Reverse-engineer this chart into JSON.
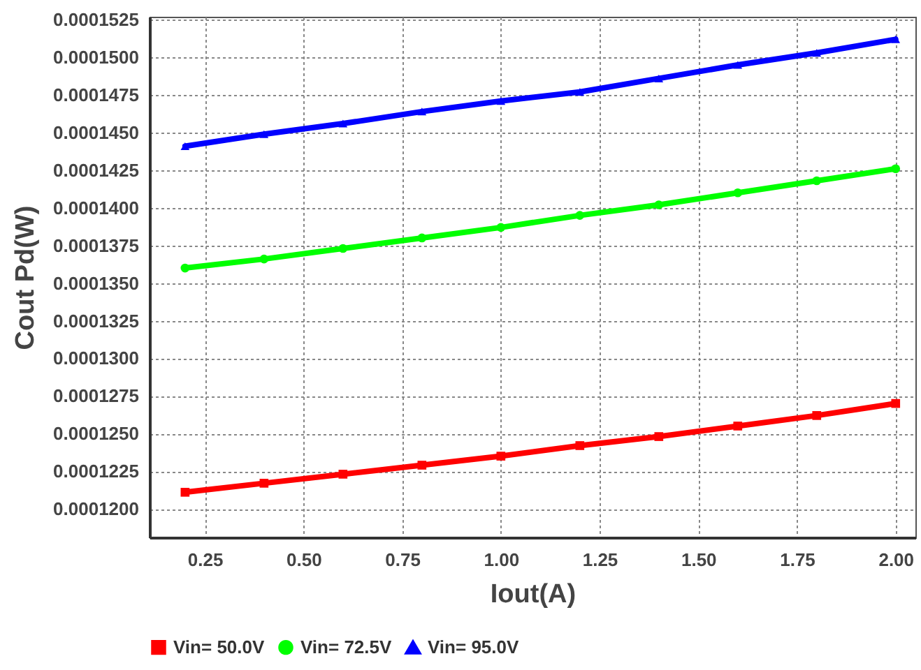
{
  "chart_data": {
    "type": "line",
    "xlabel": "Iout(A)",
    "ylabel": "Cout Pd(W)",
    "x": [
      0.2,
      0.4,
      0.6,
      0.8,
      1.0,
      1.2,
      1.4,
      1.6,
      1.8,
      2.0
    ],
    "series": [
      {
        "name": "Vin= 50.0V",
        "color": "#ff0000",
        "marker": "square",
        "values": [
          0.0001211,
          0.0001217,
          0.0001223,
          0.0001229,
          0.0001235,
          0.0001242,
          0.0001248,
          0.0001255,
          0.0001262,
          0.000127
        ]
      },
      {
        "name": "Vin= 72.5V",
        "color": "#00ff00",
        "marker": "circle",
        "values": [
          0.000136,
          0.0001366,
          0.0001373,
          0.000138,
          0.0001387,
          0.0001395,
          0.0001402,
          0.000141,
          0.0001418,
          0.0001426
        ]
      },
      {
        "name": "Vin= 95.0V",
        "color": "#0000ff",
        "marker": "triangle",
        "values": [
          0.0001441,
          0.0001449,
          0.0001456,
          0.0001464,
          0.0001471,
          0.0001477,
          0.0001486,
          0.0001495,
          0.0001503,
          0.0001512
        ]
      }
    ],
    "xlim": [
      0.11,
      2.05
    ],
    "xticks": [
      {
        "value": 0.25,
        "label": "0.25"
      },
      {
        "value": 0.5,
        "label": "0.50"
      },
      {
        "value": 0.75,
        "label": "0.75"
      },
      {
        "value": 1.0,
        "label": "1.00"
      },
      {
        "value": 1.25,
        "label": "1.25"
      },
      {
        "value": 1.5,
        "label": "1.50"
      },
      {
        "value": 1.75,
        "label": "1.75"
      },
      {
        "value": 2.0,
        "label": "2.00"
      }
    ],
    "ylim": [
      0.0001181,
      0.0001527
    ],
    "yticks": [
      {
        "value": 0.00012,
        "label": "0.0001200"
      },
      {
        "value": 0.0001225,
        "label": "0.0001225"
      },
      {
        "value": 0.000125,
        "label": "0.0001250"
      },
      {
        "value": 0.0001275,
        "label": "0.0001275"
      },
      {
        "value": 0.00013,
        "label": "0.0001300"
      },
      {
        "value": 0.0001325,
        "label": "0.0001325"
      },
      {
        "value": 0.000135,
        "label": "0.0001350"
      },
      {
        "value": 0.0001375,
        "label": "0.0001375"
      },
      {
        "value": 0.00014,
        "label": "0.0001400"
      },
      {
        "value": 0.0001425,
        "label": "0.0001425"
      },
      {
        "value": 0.000145,
        "label": "0.0001450"
      },
      {
        "value": 0.0001475,
        "label": "0.0001475"
      },
      {
        "value": 0.00015,
        "label": "0.0001500"
      },
      {
        "value": 0.0001525,
        "label": "0.0001525"
      }
    ],
    "grid": true,
    "legend": "bottom",
    "line_style": "solid"
  }
}
